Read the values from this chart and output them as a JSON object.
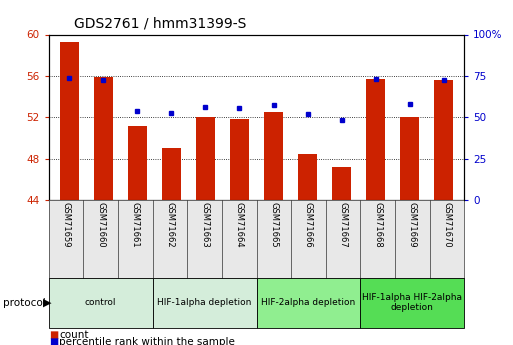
{
  "title": "GDS2761 / hmm31399-S",
  "samples": [
    "GSM71659",
    "GSM71660",
    "GSM71661",
    "GSM71662",
    "GSM71663",
    "GSM71664",
    "GSM71665",
    "GSM71666",
    "GSM71667",
    "GSM71668",
    "GSM71669",
    "GSM71670"
  ],
  "bar_heights": [
    59.3,
    55.9,
    51.2,
    49.0,
    52.0,
    51.8,
    52.5,
    48.5,
    47.2,
    55.7,
    52.0,
    55.6
  ],
  "percentile_ranks": [
    73.5,
    72.5,
    54.0,
    52.5,
    56.0,
    55.5,
    57.5,
    52.0,
    48.5,
    73.0,
    58.0,
    72.5
  ],
  "bar_color": "#cc2200",
  "dot_color": "#0000cc",
  "ymin": 44,
  "ymax": 60,
  "yticks": [
    44,
    48,
    52,
    56,
    60
  ],
  "ytick_labels": [
    "44",
    "48",
    "52",
    "56",
    "60"
  ],
  "y2min": 0,
  "y2max": 100,
  "y2ticks": [
    0,
    25,
    50,
    75,
    100
  ],
  "y2tick_labels": [
    "0",
    "25",
    "50",
    "75",
    "100%"
  ],
  "protocol_groups": [
    {
      "label": "control",
      "start": 0,
      "end": 2,
      "color": "#d4edda"
    },
    {
      "label": "HIF-1alpha depletion",
      "start": 3,
      "end": 5,
      "color": "#d4edda"
    },
    {
      "label": "HIF-2alpha depletion",
      "start": 6,
      "end": 8,
      "color": "#90ee90"
    },
    {
      "label": "HIF-1alpha HIF-2alpha\ndepletion",
      "start": 9,
      "end": 11,
      "color": "#55dd55"
    }
  ],
  "protocol_label": "protocol",
  "legend_count_label": "count",
  "legend_pct_label": "percentile rank within the sample",
  "title_fontsize": 10,
  "tick_fontsize": 7.5,
  "sample_fontsize": 6.0,
  "protocol_fontsize": 6.5,
  "legend_fontsize": 7.5,
  "bg_color": "#e8e8e8"
}
